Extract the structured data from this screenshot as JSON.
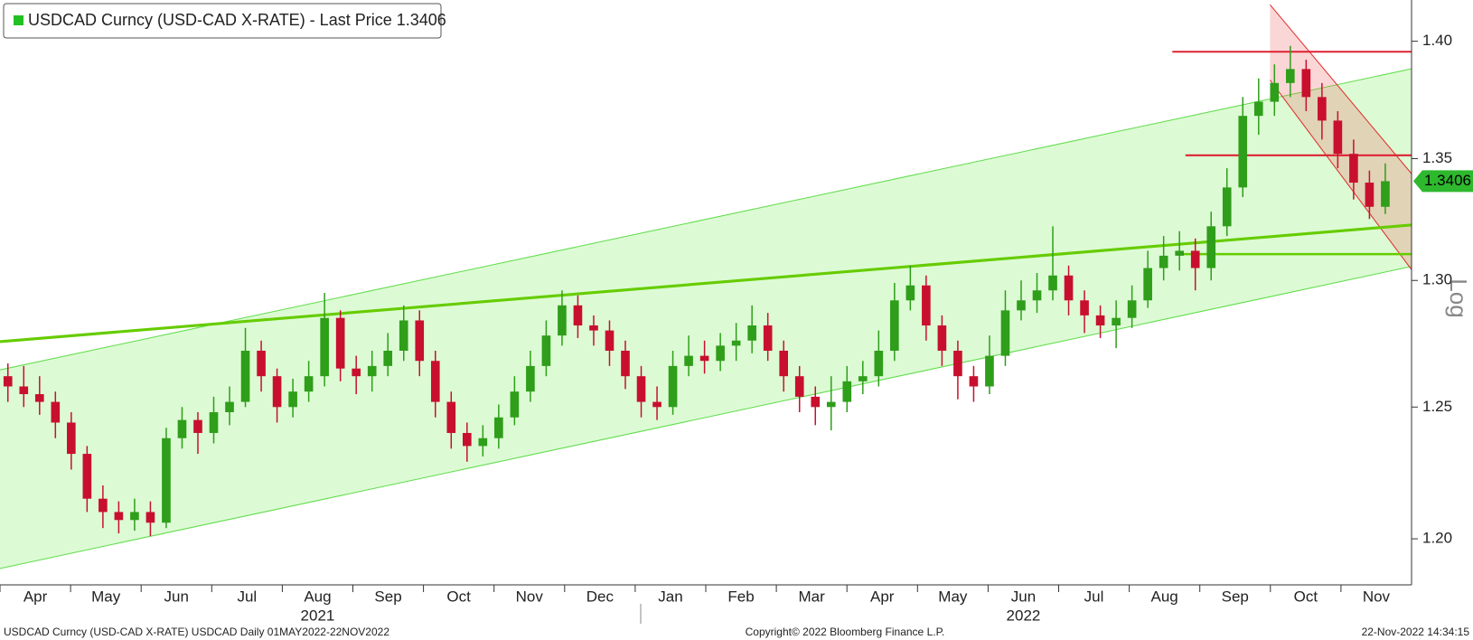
{
  "chart_data": {
    "type": "candlestick",
    "legend_label": "USDCAD Curncy (USD-CAD X-RATE) - Last Price 1.3406",
    "log_scale": true,
    "axis_note": "Log",
    "last_price": 1.3406,
    "up_color": "#2f9e1a",
    "down_color": "#c8102e",
    "years": [
      {
        "label": "2021",
        "months": [
          "Apr",
          "May",
          "Jun",
          "Jul",
          "Aug",
          "Sep",
          "Oct",
          "Nov",
          "Dec"
        ]
      },
      {
        "label": "2022",
        "months": [
          "Jan",
          "Feb",
          "Mar",
          "Apr",
          "May",
          "Jun",
          "Jul",
          "Aug",
          "Sep",
          "Oct",
          "Nov"
        ]
      }
    ],
    "open": [
      1.262,
      1.258,
      1.255,
      1.252,
      1.244,
      1.232,
      1.215,
      1.21,
      1.207,
      1.21,
      1.206,
      1.238,
      1.245,
      1.24,
      1.248,
      1.252,
      1.272,
      1.262,
      1.25,
      1.256,
      1.262,
      1.285,
      1.265,
      1.262,
      1.266,
      1.272,
      1.284,
      1.268,
      1.252,
      1.24,
      1.235,
      1.238,
      1.246,
      1.256,
      1.266,
      1.278,
      1.29,
      1.282,
      1.28,
      1.272,
      1.262,
      1.252,
      1.25,
      1.266,
      1.27,
      1.268,
      1.274,
      1.276,
      1.282,
      1.272,
      1.262,
      1.254,
      1.25,
      1.252,
      1.26,
      1.262,
      1.272,
      1.292,
      1.298,
      1.282,
      1.272,
      1.262,
      1.258,
      1.27,
      1.288,
      1.292,
      1.296,
      1.302,
      1.292,
      1.286,
      1.282,
      1.285,
      1.292,
      1.305,
      1.31,
      1.312,
      1.305,
      1.322,
      1.338,
      1.368,
      1.374,
      1.382,
      1.388,
      1.376,
      1.366,
      1.352,
      1.34,
      1.33
    ],
    "high": [
      1.267,
      1.266,
      1.262,
      1.256,
      1.248,
      1.235,
      1.22,
      1.214,
      1.215,
      1.214,
      1.242,
      1.25,
      1.248,
      1.254,
      1.258,
      1.281,
      1.276,
      1.265,
      1.261,
      1.268,
      1.295,
      1.288,
      1.27,
      1.272,
      1.279,
      1.29,
      1.288,
      1.272,
      1.256,
      1.244,
      1.243,
      1.251,
      1.262,
      1.272,
      1.284,
      1.296,
      1.294,
      1.286,
      1.284,
      1.276,
      1.266,
      1.258,
      1.272,
      1.278,
      1.276,
      1.279,
      1.283,
      1.29,
      1.287,
      1.276,
      1.266,
      1.258,
      1.262,
      1.266,
      1.268,
      1.28,
      1.299,
      1.306,
      1.302,
      1.286,
      1.276,
      1.266,
      1.278,
      1.296,
      1.3,
      1.303,
      1.322,
      1.306,
      1.296,
      1.29,
      1.292,
      1.298,
      1.312,
      1.318,
      1.32,
      1.317,
      1.328,
      1.346,
      1.376,
      1.384,
      1.39,
      1.398,
      1.392,
      1.382,
      1.37,
      1.358,
      1.345,
      1.348
    ],
    "low": [
      1.252,
      1.25,
      1.247,
      1.238,
      1.226,
      1.21,
      1.204,
      1.202,
      1.203,
      1.201,
      1.204,
      1.234,
      1.232,
      1.236,
      1.243,
      1.25,
      1.256,
      1.244,
      1.246,
      1.252,
      1.258,
      1.26,
      1.255,
      1.256,
      1.262,
      1.268,
      1.262,
      1.246,
      1.234,
      1.229,
      1.231,
      1.234,
      1.243,
      1.252,
      1.262,
      1.274,
      1.277,
      1.274,
      1.266,
      1.257,
      1.246,
      1.245,
      1.247,
      1.262,
      1.263,
      1.264,
      1.268,
      1.271,
      1.268,
      1.256,
      1.248,
      1.243,
      1.241,
      1.248,
      1.255,
      1.258,
      1.268,
      1.288,
      1.276,
      1.266,
      1.253,
      1.252,
      1.255,
      1.266,
      1.284,
      1.287,
      1.292,
      1.286,
      1.279,
      1.277,
      1.273,
      1.281,
      1.289,
      1.3,
      1.304,
      1.296,
      1.3,
      1.318,
      1.334,
      1.36,
      1.368,
      1.376,
      1.37,
      1.358,
      1.346,
      1.333,
      1.325,
      1.327
    ],
    "close": [
      1.258,
      1.255,
      1.252,
      1.244,
      1.232,
      1.215,
      1.21,
      1.207,
      1.21,
      1.206,
      1.238,
      1.245,
      1.24,
      1.248,
      1.252,
      1.272,
      1.262,
      1.25,
      1.256,
      1.262,
      1.285,
      1.265,
      1.262,
      1.266,
      1.272,
      1.284,
      1.268,
      1.252,
      1.24,
      1.235,
      1.238,
      1.246,
      1.256,
      1.266,
      1.278,
      1.29,
      1.282,
      1.28,
      1.272,
      1.262,
      1.252,
      1.25,
      1.266,
      1.27,
      1.268,
      1.274,
      1.276,
      1.282,
      1.272,
      1.262,
      1.254,
      1.25,
      1.252,
      1.26,
      1.262,
      1.272,
      1.292,
      1.298,
      1.282,
      1.272,
      1.262,
      1.258,
      1.27,
      1.288,
      1.292,
      1.296,
      1.302,
      1.292,
      1.286,
      1.282,
      1.285,
      1.292,
      1.305,
      1.31,
      1.312,
      1.305,
      1.322,
      1.338,
      1.368,
      1.374,
      1.382,
      1.388,
      1.376,
      1.366,
      1.352,
      1.34,
      1.33,
      1.3406
    ],
    "ylim": [
      1.183,
      1.418
    ],
    "yticks": [
      {
        "value": 1.2,
        "label": "1.20"
      },
      1.25,
      {
        "value": 1.3,
        "label": "1.30"
      },
      1.35,
      {
        "value": 1.4,
        "label": "1.40"
      }
    ],
    "footer": {
      "left": "USDCAD Curncy (USD-CAD X-RATE) USDCAD  Daily 01MAY2022-22NOV2022",
      "center": "Copyright© 2022 Bloomberg Finance L.P.",
      "right": "22-Nov-2022 14:34:15"
    }
  }
}
